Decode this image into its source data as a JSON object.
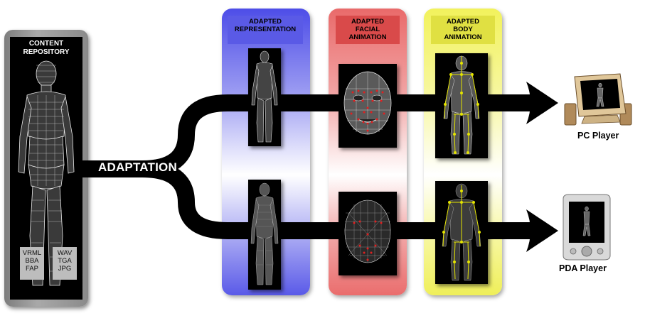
{
  "repository": {
    "title_line1": "CONTENT",
    "title_line2": "REPOSITORY",
    "formats_left": [
      "VRML",
      "BBA",
      "FAP"
    ],
    "formats_right": [
      "WAV",
      "TGA",
      "JPG"
    ]
  },
  "adaptation_label": "ADAPTATION",
  "columns": {
    "representation": {
      "line1": "ADAPTED",
      "line2": "REPRESENTATION"
    },
    "facial": {
      "line1": "ADAPTED",
      "line2": "FACIAL",
      "line3": "ANIMATION"
    },
    "body": {
      "line1": "ADAPTED",
      "line2": "BODY",
      "line3": "ANIMATION"
    }
  },
  "players": {
    "pc": "PC Player",
    "pda": "PDA Player"
  },
  "colors": {
    "representation": "#5a5ae6",
    "facial": "#d94a4a",
    "body": "#e0e042",
    "arrow": "#000000"
  },
  "icons": [
    "human-wireframe-icon",
    "face-wireframe-icon",
    "skeleton-icon",
    "pc-icon",
    "pda-icon"
  ]
}
